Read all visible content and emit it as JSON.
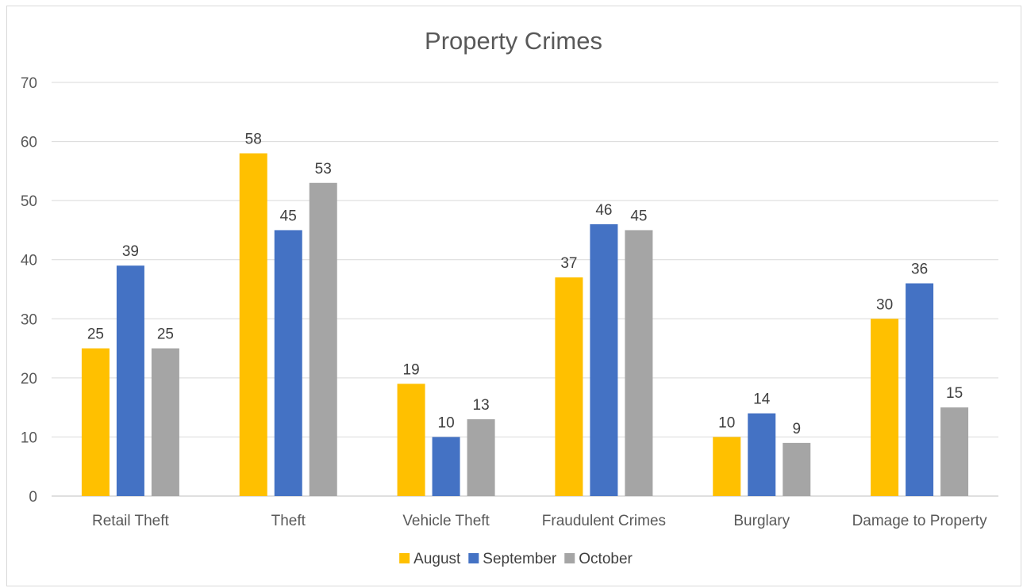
{
  "chart_data": {
    "type": "bar",
    "title": "Property Crimes",
    "categories": [
      "Retail Theft",
      "Theft",
      "Vehicle Theft",
      "Fraudulent Crimes",
      "Burglary",
      "Damage to Property"
    ],
    "series": [
      {
        "name": "August",
        "color": "#FFC000",
        "values": [
          25,
          58,
          19,
          37,
          10,
          30
        ]
      },
      {
        "name": "September",
        "color": "#4472C4",
        "values": [
          39,
          45,
          10,
          46,
          14,
          36
        ]
      },
      {
        "name": "October",
        "color": "#A5A5A5",
        "values": [
          25,
          53,
          13,
          45,
          9,
          15
        ]
      }
    ],
    "ylim": [
      0,
      70
    ],
    "yticks": [
      "0",
      "10",
      "20",
      "30",
      "40",
      "50",
      "60",
      "70"
    ],
    "grid": true,
    "legend_position": "bottom",
    "data_labels": true
  }
}
